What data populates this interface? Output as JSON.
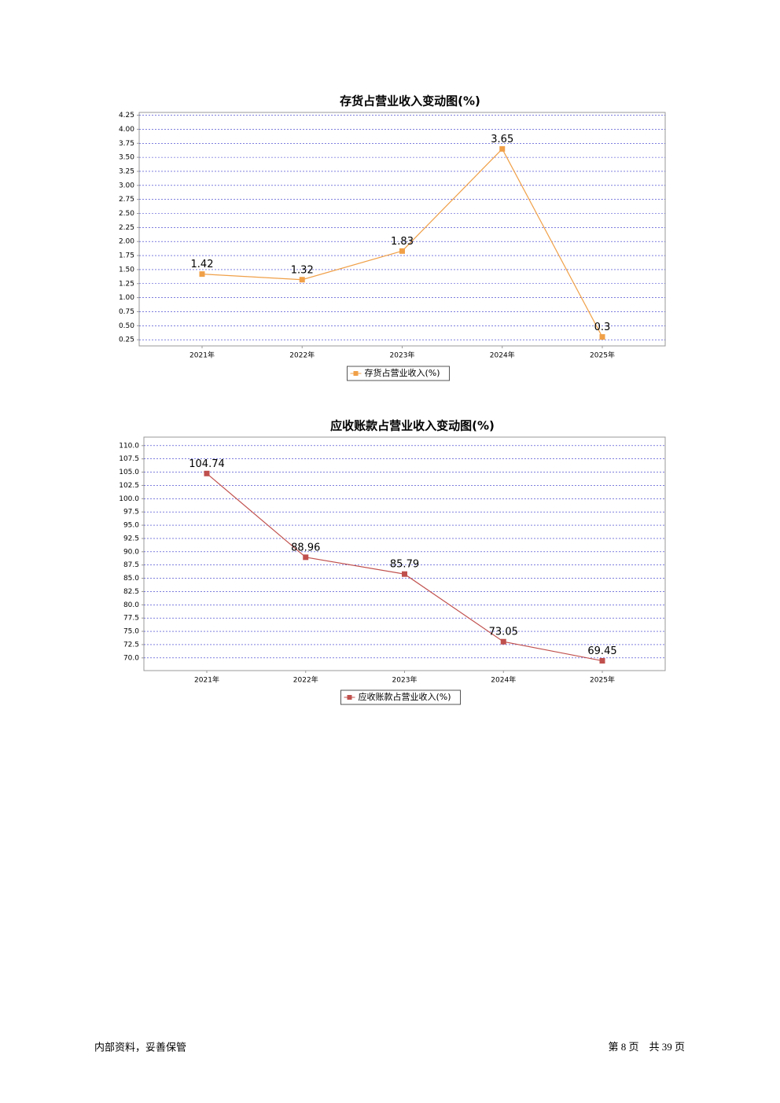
{
  "chart_data": [
    {
      "type": "line",
      "title": "存货占营业收入变动图(%)",
      "categories": [
        "2021年",
        "2022年",
        "2023年",
        "2024年",
        "2025年"
      ],
      "series": [
        {
          "name": "存货占营业收入(%)",
          "color": "#f0a048",
          "values": [
            1.42,
            1.32,
            1.83,
            3.65,
            0.3
          ]
        }
      ],
      "ylim": [
        0.14,
        4.3
      ],
      "yticks": [
        0.25,
        {
          "value": 0.5,
          "label": "0.50"
        },
        0.75,
        {
          "value": 1,
          "label": "1.00"
        },
        1.25,
        {
          "value": 1.5,
          "label": "1.50"
        },
        1.75,
        {
          "value": 2,
          "label": "2.00"
        },
        2.25,
        {
          "value": 2.5,
          "label": "2.50"
        },
        2.75,
        {
          "value": 3,
          "label": "3.00"
        },
        3.25,
        {
          "value": 3.5,
          "label": "3.50"
        },
        3.75,
        {
          "value": 4,
          "label": "4.00"
        },
        4.25
      ],
      "grid": true,
      "legend": "bottom"
    },
    {
      "type": "line",
      "title": "应收账款占营业收入变动图(%)",
      "categories": [
        "2021年",
        "2022年",
        "2023年",
        "2024年",
        "2025年"
      ],
      "series": [
        {
          "name": "应收账款占营业收入(%)",
          "color": "#c0504d",
          "values": [
            104.74,
            88.96,
            85.79,
            73.05,
            69.45
          ]
        }
      ],
      "ylim": [
        67.6,
        111.6
      ],
      "yticks": [
        {
          "value": 70,
          "label": "70.0"
        },
        72.5,
        {
          "value": 75,
          "label": "75.0"
        },
        77.5,
        {
          "value": 80,
          "label": "80.0"
        },
        82.5,
        {
          "value": 85,
          "label": "85.0"
        },
        87.5,
        {
          "value": 90,
          "label": "90.0"
        },
        92.5,
        {
          "value": 95,
          "label": "95.0"
        },
        97.5,
        {
          "value": 100,
          "label": "100.0"
        },
        102.5,
        {
          "value": 105,
          "label": "105.0"
        },
        107.5,
        {
          "value": 110,
          "label": "110.0"
        }
      ],
      "grid": true,
      "legend": "bottom"
    }
  ],
  "footer": {
    "left": "内部资料，妥善保管",
    "right": "第 8 页　共 39 页"
  }
}
